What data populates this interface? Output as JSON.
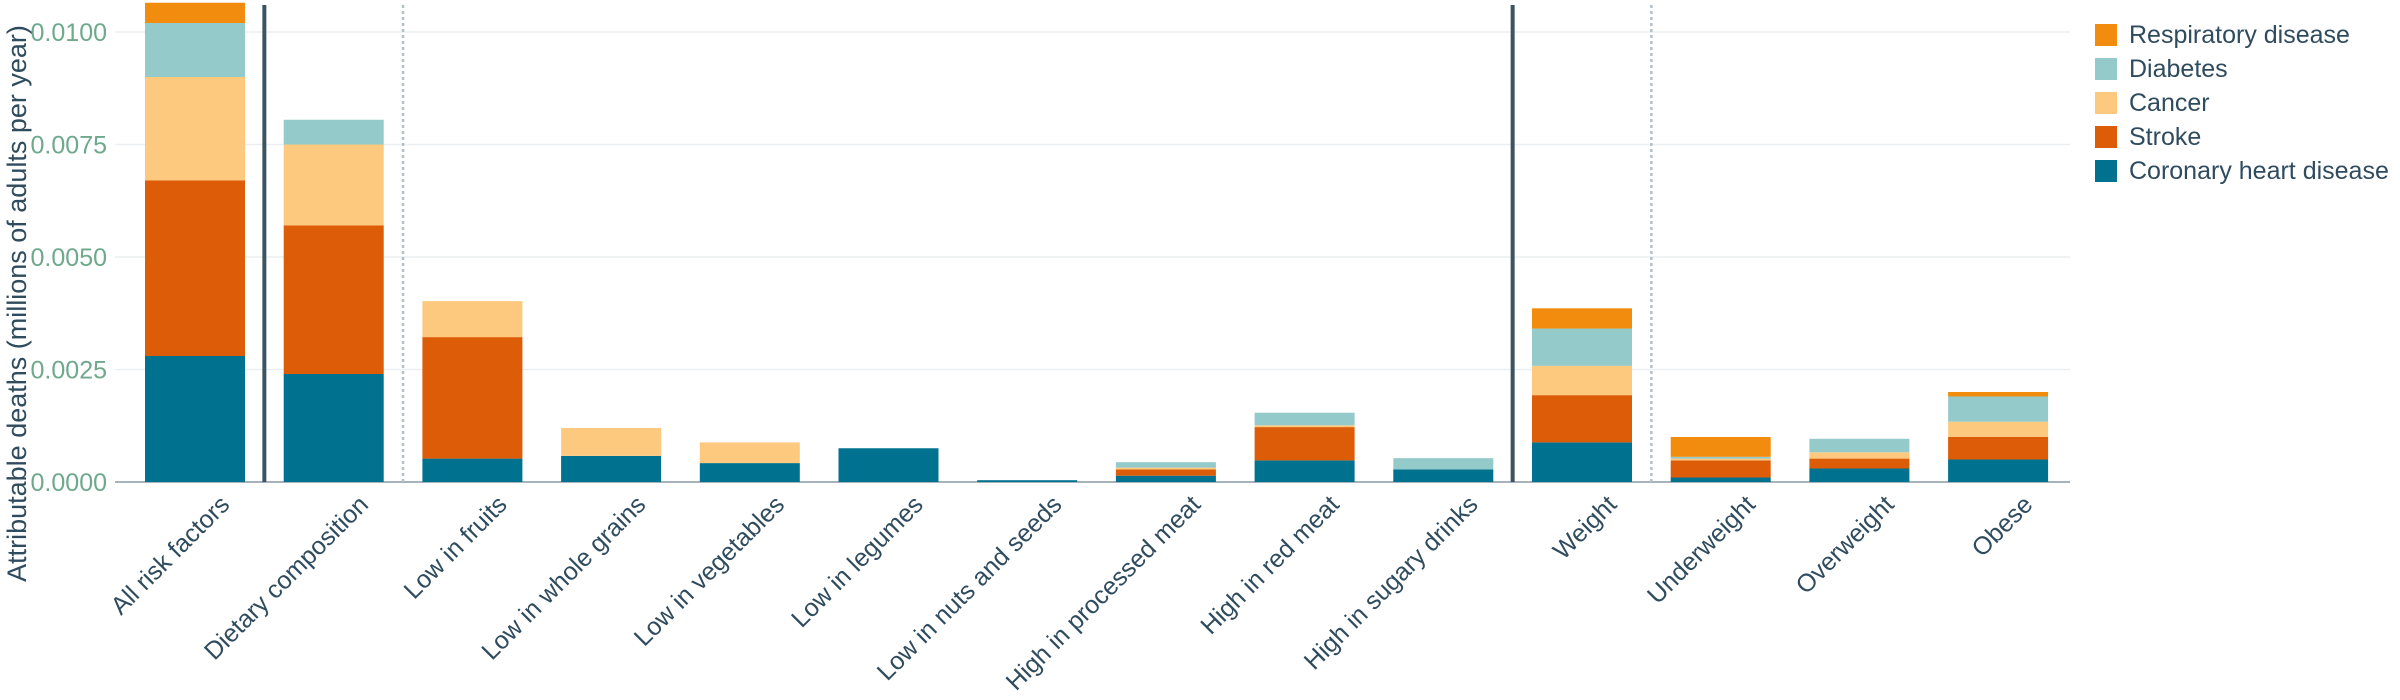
{
  "chart_data": {
    "type": "bar",
    "stacked": true,
    "title": "",
    "xlabel": "",
    "ylabel": "Attributable deaths (millions of adults per year)",
    "ylim": [
      0,
      0.0106
    ],
    "yticks": [
      0,
      0.0025,
      0.005,
      0.0075,
      0.01
    ],
    "ytick_labels": [
      "0.0000",
      "0.0025",
      "0.0050",
      "0.0075",
      "0.0100"
    ],
    "categories": [
      "All risk factors",
      "Dietary composition",
      "Low in fruits",
      "Low in whole grains",
      "Low in vegetables",
      "Low in legumes",
      "Low in nuts and seeds",
      "High in processed meat",
      "High in red meat",
      "High in sugary drinks",
      "Weight",
      "Underweight",
      "Overweight",
      "Obese"
    ],
    "series": [
      {
        "name": "Coronary heart disease",
        "color": "#00728f",
        "values": [
          0.0028,
          0.0024,
          0.00052,
          0.00058,
          0.00042,
          0.00075,
          4e-05,
          0.00014,
          0.00048,
          0.00028,
          0.00088,
          0.0001,
          0.0003,
          0.0005
        ]
      },
      {
        "name": "Stroke",
        "color": "#dd5c08",
        "values": [
          0.0039,
          0.0033,
          0.0027,
          0.0,
          0.0,
          0.0,
          0.0,
          0.00014,
          0.00074,
          0.0,
          0.00105,
          0.00038,
          0.00022,
          0.0005
        ]
      },
      {
        "name": "Cancer",
        "color": "#fdc97f",
        "values": [
          0.0023,
          0.0018,
          0.0008,
          0.00062,
          0.00046,
          0.0,
          0.0,
          4e-05,
          4e-05,
          0.0,
          0.00065,
          4e-05,
          0.00014,
          0.00034
        ]
      },
      {
        "name": "Diabetes",
        "color": "#94cbca",
        "values": [
          0.0012,
          0.00055,
          0.0,
          0.0,
          0.0,
          0.0,
          0.0,
          0.00012,
          0.00028,
          0.00025,
          0.00083,
          4e-05,
          0.0003,
          0.00056
        ]
      },
      {
        "name": "Respiratory disease",
        "color": "#f28c0f",
        "values": [
          0.00045,
          0.0,
          0.0,
          0.0,
          0.0,
          0.0,
          0.0,
          0.0,
          0.0,
          0.0,
          0.00045,
          0.00044,
          0.0,
          0.0001
        ]
      }
    ],
    "legend_order": [
      "Respiratory disease",
      "Diabetes",
      "Cancer",
      "Stroke",
      "Coronary heart disease"
    ],
    "separators": [
      {
        "after_index": 0,
        "style": "solid"
      },
      {
        "after_index": 1,
        "style": "dotted"
      },
      {
        "after_index": 9,
        "style": "solid"
      },
      {
        "after_index": 10,
        "style": "dotted"
      }
    ],
    "grid": true,
    "legend_position": "top-right"
  },
  "colors": {
    "axis_label": "#2f4b5e",
    "tick_label": "#6fa98c",
    "grid": "#eceff1",
    "axis": "#8a9aa6",
    "separator_solid": "#3c5364",
    "separator_dotted": "#b5bfc6"
  }
}
